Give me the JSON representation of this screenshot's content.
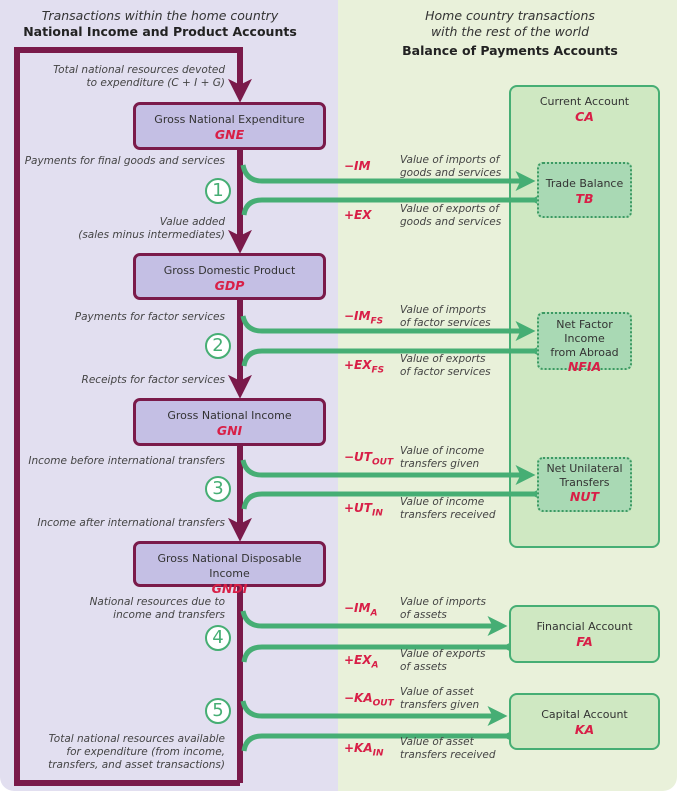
{
  "left_header": {
    "subtitle": "Transactions within the home country",
    "title": "National Income and Product Accounts"
  },
  "right_header": {
    "subtitle_1": "Home country transactions",
    "subtitle_2": "with the rest of the world",
    "title": "Balance of Payments Accounts"
  },
  "colors": {
    "maroon": "#7a1a4a",
    "green": "#46ae74",
    "red": "#d81f47",
    "left_bg": "#e2dff0",
    "right_bg": "#e9f1da"
  },
  "nipa_boxes": [
    {
      "name": "Gross National Expenditure",
      "abbr": "GNE"
    },
    {
      "name": "Gross Domestic Product",
      "abbr": "GDP"
    },
    {
      "name": "Gross National Income",
      "abbr": "GNI"
    },
    {
      "name": "Gross National Disposable Income",
      "abbr": "GNDI"
    }
  ],
  "left_labels": {
    "top_1": "Total national resources devoted",
    "top_2": "to expenditure (C + I + G)",
    "l1": "Payments for final goods and services",
    "l2a": "Value added",
    "l2b": "(sales minus intermediates)",
    "l3": "Payments for factor services",
    "l4": "Receipts for factor services",
    "l5": "Income before international transfers",
    "l6": "Income after international transfers",
    "l7a": "National resources due to",
    "l7b": "income and transfers",
    "l8a": "Total national resources available",
    "l8b": "for expenditure (from income,",
    "l8c": "transfers, and asset transactions)"
  },
  "steps": [
    "1",
    "2",
    "3",
    "4",
    "5"
  ],
  "flows": [
    {
      "sign": "−IM",
      "sub": "",
      "desc1": "Value of imports of",
      "desc2": "goods and services"
    },
    {
      "sign": "+EX",
      "sub": "",
      "desc1": "Value of exports of",
      "desc2": "goods and services"
    },
    {
      "sign": "−IM",
      "sub": "FS",
      "desc1": "Value of imports",
      "desc2": "of factor services"
    },
    {
      "sign": "+EX",
      "sub": "FS",
      "desc1": "Value of exports",
      "desc2": "of factor services"
    },
    {
      "sign": "−UT",
      "sub": "OUT",
      "desc1": "Value of income",
      "desc2": "transfers given"
    },
    {
      "sign": "+UT",
      "sub": "IN",
      "desc1": "Value of income",
      "desc2": "transfers received"
    },
    {
      "sign": "−IM",
      "sub": "A",
      "desc1": "Value of imports",
      "desc2": "of assets"
    },
    {
      "sign": "+EX",
      "sub": "A",
      "desc1": "Value of exports",
      "desc2": "of assets"
    },
    {
      "sign": "−KA",
      "sub": "OUT",
      "desc1": "Value of asset",
      "desc2": "transfers given"
    },
    {
      "sign": "+KA",
      "sub": "IN",
      "desc1": "Value of asset",
      "desc2": "transfers received"
    }
  ],
  "bop": {
    "current_account": {
      "name": "Current Account",
      "abbr": "CA"
    },
    "trade_balance": {
      "name": "Trade Balance",
      "abbr": "TB"
    },
    "nfia": {
      "name1": "Net Factor Income",
      "name2": "from Abroad",
      "abbr": "NFIA"
    },
    "nut": {
      "name1": "Net Unilateral",
      "name2": "Transfers",
      "abbr": "NUT"
    },
    "financial_account": {
      "name": "Financial Account",
      "abbr": "FA"
    },
    "capital_account": {
      "name": "Capital Account",
      "abbr": "KA"
    }
  }
}
